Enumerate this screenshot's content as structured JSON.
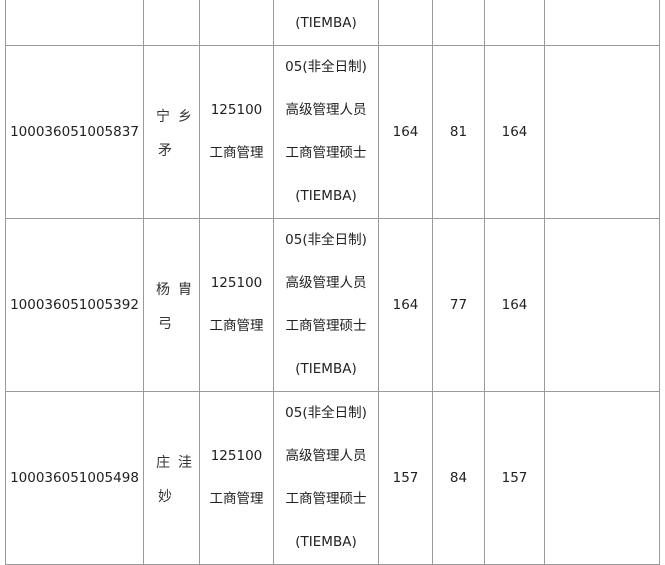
{
  "top_row": {
    "program_tail": "(TIEMBA)"
  },
  "rows": [
    {
      "id": "100036051005837",
      "name_fragments": [
        "宁",
        "乡",
        "矛"
      ],
      "code": "125100",
      "major": "工商管理",
      "program": [
        "05(非全日制)",
        "高级管理人员",
        "工商管理硕士",
        "(TIEMBA)"
      ],
      "score1": "164",
      "score2": "81",
      "score3": "164"
    },
    {
      "id": "100036051005392",
      "name_fragments": [
        "杨",
        "胄",
        "弓"
      ],
      "code": "125100",
      "major": "工商管理",
      "program": [
        "05(非全日制)",
        "高级管理人员",
        "工商管理硕士",
        "(TIEMBA)"
      ],
      "score1": "164",
      "score2": "77",
      "score3": "164"
    },
    {
      "id": "100036051005498",
      "name_fragments": [
        "庄",
        "洼",
        "妙"
      ],
      "code": "125100",
      "major": "工商管理",
      "program": [
        "05(非全日制)",
        "高级管理人员",
        "工商管理硕士",
        "(TIEMBA)"
      ],
      "score1": "157",
      "score2": "84",
      "score3": "157"
    }
  ]
}
